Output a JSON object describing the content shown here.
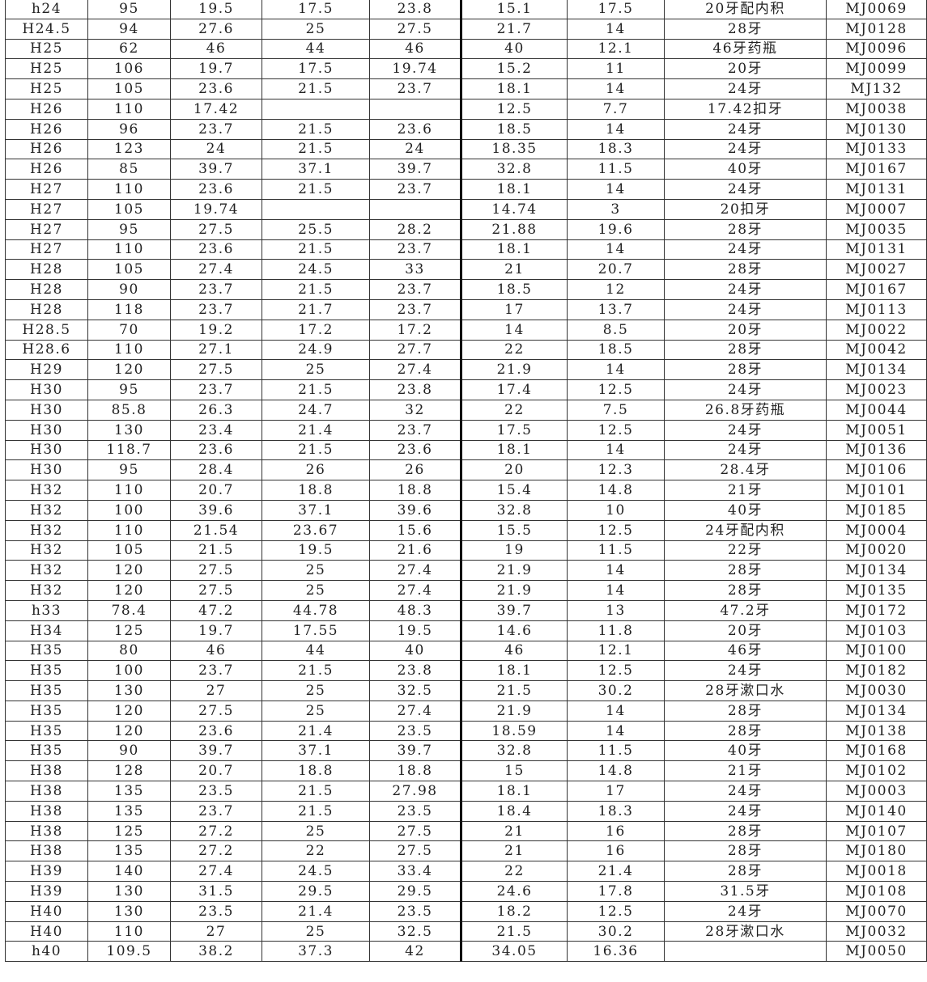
{
  "rows": [
    [
      "h24",
      "95",
      "19.5",
      "17.5",
      "23.8",
      "15.1",
      "17.5",
      "20牙配内积",
      "MJ0069"
    ],
    [
      "H24.5",
      "94",
      "27.6",
      "25",
      "27.5",
      "21.7",
      "14",
      "28牙",
      "MJ0128"
    ],
    [
      "H25",
      "62",
      "46",
      "44",
      "46",
      "40",
      "12.1",
      "46牙药瓶",
      "MJ0096"
    ],
    [
      "H25",
      "106",
      "19.7",
      "17.5",
      "19.74",
      "15.2",
      "11",
      "20牙",
      "MJ0099"
    ],
    [
      "H25",
      "105",
      "23.6",
      "21.5",
      "23.7",
      "18.1",
      "14",
      "24牙",
      "MJ132"
    ],
    [
      "H26",
      "110",
      "17.42",
      "",
      "",
      "12.5",
      "7.7",
      "17.42扣牙",
      "MJ0038"
    ],
    [
      "H26",
      "96",
      "23.7",
      "21.5",
      "23.6",
      "18.5",
      "14",
      "24牙",
      "MJ0130"
    ],
    [
      "H26",
      "123",
      "24",
      "21.5",
      "24",
      "18.35",
      "18.3",
      "24牙",
      "MJ0133"
    ],
    [
      "H26",
      "85",
      "39.7",
      "37.1",
      "39.7",
      "32.8",
      "11.5",
      "40牙",
      "MJ0167"
    ],
    [
      "H27",
      "110",
      "23.6",
      "21.5",
      "23.7",
      "18.1",
      "14",
      "24牙",
      "MJ0131"
    ],
    [
      "H27",
      "105",
      "19.74",
      "",
      "",
      "14.74",
      "3",
      "20扣牙",
      "MJ0007"
    ],
    [
      "H27",
      "95",
      "27.5",
      "25.5",
      "28.2",
      "21.88",
      "19.6",
      "28牙",
      "MJ0035"
    ],
    [
      "H27",
      "110",
      "23.6",
      "21.5",
      "23.7",
      "18.1",
      "14",
      "24牙",
      "MJ0131"
    ],
    [
      "H28",
      "105",
      "27.4",
      "24.5",
      "33",
      "21",
      "20.7",
      "28牙",
      "MJ0027"
    ],
    [
      "H28",
      "90",
      "23.7",
      "21.5",
      "23.7",
      "18.5",
      "12",
      "24牙",
      "MJ0167"
    ],
    [
      "H28",
      "118",
      "23.7",
      "21.7",
      "23.7",
      "17",
      "13.7",
      "24牙",
      "MJ0113"
    ],
    [
      "H28.5",
      "70",
      "19.2",
      "17.2",
      "17.2",
      "14",
      "8.5",
      "20牙",
      "MJ0022"
    ],
    [
      "H28.6",
      "110",
      "27.1",
      "24.9",
      "27.7",
      "22",
      "18.5",
      "28牙",
      "MJ0042"
    ],
    [
      "H29",
      "120",
      "27.5",
      "25",
      "27.4",
      "21.9",
      "14",
      "28牙",
      "MJ0134"
    ],
    [
      "H30",
      "95",
      "23.7",
      "21.5",
      "23.8",
      "17.4",
      "12.5",
      "24牙",
      "MJ0023"
    ],
    [
      "H30",
      "85.8",
      "26.3",
      "24.7",
      "32",
      "22",
      "7.5",
      "26.8牙药瓶",
      "MJ0044"
    ],
    [
      "H30",
      "130",
      "23.4",
      "21.4",
      "23.7",
      "17.5",
      "12.5",
      "24牙",
      "MJ0051"
    ],
    [
      "H30",
      "118.7",
      "23.6",
      "21.5",
      "23.6",
      "18.1",
      "14",
      "24牙",
      "MJ0136"
    ],
    [
      "H30",
      "95",
      "28.4",
      "26",
      "26",
      "20",
      "12.3",
      "28.4牙",
      "MJ0106"
    ],
    [
      "H32",
      "110",
      "20.7",
      "18.8",
      "18.8",
      "15.4",
      "14.8",
      "21牙",
      "MJ0101"
    ],
    [
      "H32",
      "100",
      "39.6",
      "37.1",
      "39.6",
      "32.8",
      "10",
      "40牙",
      "MJ0185"
    ],
    [
      "H32",
      "110",
      "21.54",
      "23.67",
      "15.6",
      "15.5",
      "12.5",
      "24牙配内积",
      "MJ0004"
    ],
    [
      "H32",
      "105",
      "21.5",
      "19.5",
      "21.6",
      "19",
      "11.5",
      "22牙",
      "MJ0020"
    ],
    [
      "H32",
      "120",
      "27.5",
      "25",
      "27.4",
      "21.9",
      "14",
      "28牙",
      "MJ0134"
    ],
    [
      "H32",
      "120",
      "27.5",
      "25",
      "27.4",
      "21.9",
      "14",
      "28牙",
      "MJ0135"
    ],
    [
      "h33",
      "78.4",
      "47.2",
      "44.78",
      "48.3",
      "39.7",
      "13",
      "47.2牙",
      "MJ0172"
    ],
    [
      "H34",
      "125",
      "19.7",
      "17.55",
      "19.5",
      "14.6",
      "11.8",
      "20牙",
      "MJ0103"
    ],
    [
      "H35",
      "80",
      "46",
      "44",
      "40",
      "46",
      "12.1",
      "46牙",
      "MJ0100"
    ],
    [
      "H35",
      "100",
      "23.7",
      "21.5",
      "23.8",
      "18.1",
      "12.5",
      "24牙",
      "MJ0182"
    ],
    [
      "H35",
      "130",
      "27",
      "25",
      "32.5",
      "21.5",
      "30.2",
      "28牙漱口水",
      "MJ0030"
    ],
    [
      "H35",
      "120",
      "27.5",
      "25",
      "27.4",
      "21.9",
      "14",
      "28牙",
      "MJ0134"
    ],
    [
      "H35",
      "120",
      "23.6",
      "21.4",
      "23.5",
      "18.59",
      "14",
      "28牙",
      "MJ0138"
    ],
    [
      "H35",
      "90",
      "39.7",
      "37.1",
      "39.7",
      "32.8",
      "11.5",
      "40牙",
      "MJ0168"
    ],
    [
      "H38",
      "128",
      "20.7",
      "18.8",
      "18.8",
      "15",
      "14.8",
      "21牙",
      "MJ0102"
    ],
    [
      "H38",
      "135",
      "23.5",
      "21.5",
      "27.98",
      "18.1",
      "17",
      "24牙",
      "MJ0003"
    ],
    [
      "H38",
      "135",
      "23.7",
      "21.5",
      "23.5",
      "18.4",
      "18.3",
      "24牙",
      "MJ0140"
    ],
    [
      "H38",
      "125",
      "27.2",
      "25",
      "27.5",
      "21",
      "16",
      "28牙",
      "MJ0107"
    ],
    [
      "H38",
      "135",
      "27.2",
      "22",
      "27.5",
      "21",
      "16",
      "28牙",
      "MJ0180"
    ],
    [
      "H39",
      "140",
      "27.4",
      "24.5",
      "33.4",
      "22",
      "21.4",
      "28牙",
      "MJ0018"
    ],
    [
      "H39",
      "130",
      "31.5",
      "29.5",
      "29.5",
      "24.6",
      "17.8",
      "31.5牙",
      "MJ0108"
    ],
    [
      "H40",
      "130",
      "23.5",
      "21.4",
      "23.5",
      "18.2",
      "12.5",
      "24牙",
      "MJ0070"
    ],
    [
      "H40",
      "110",
      "27",
      "25",
      "32.5",
      "21.5",
      "30.2",
      "28牙漱口水",
      "MJ0032"
    ],
    [
      "h40",
      "109.5",
      "38.2",
      "37.3",
      "42",
      "34.05",
      "16.36",
      "",
      "MJ0050"
    ]
  ]
}
